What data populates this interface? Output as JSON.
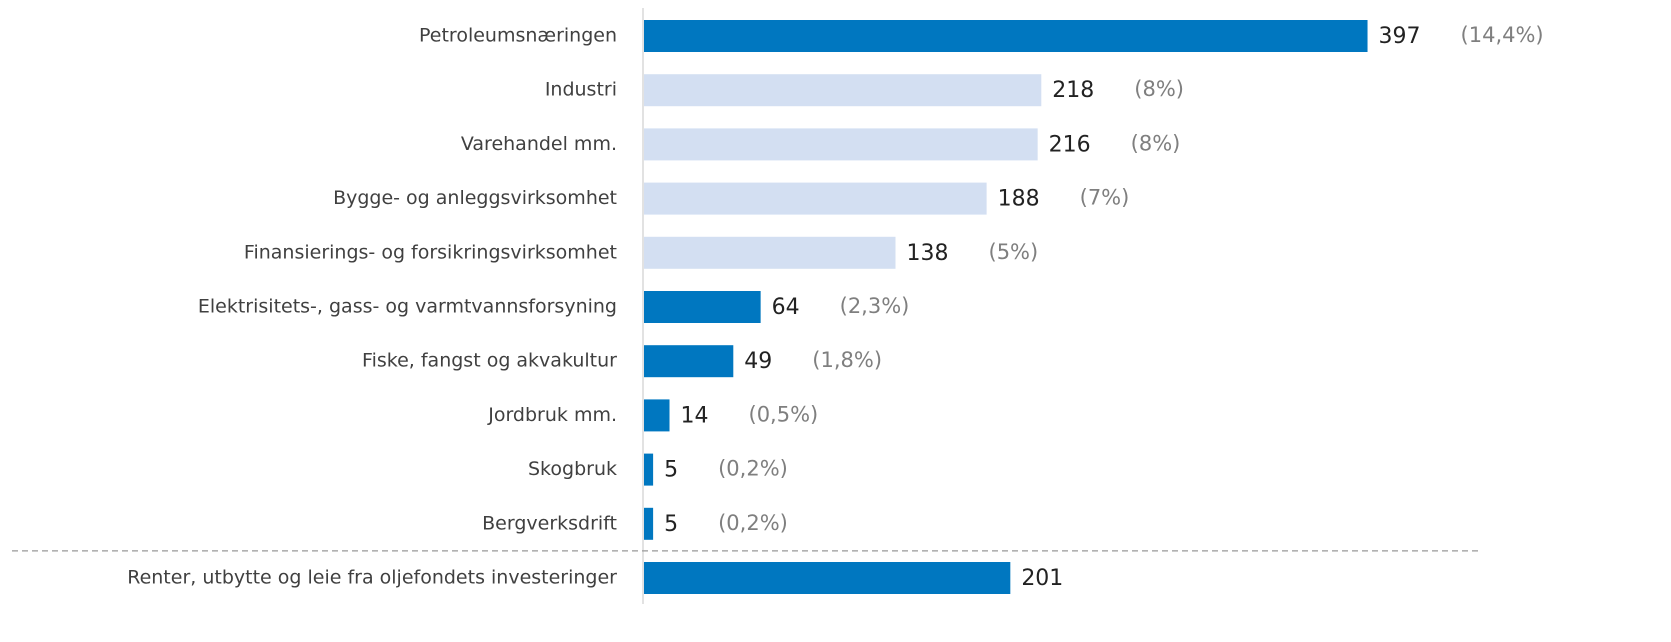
{
  "chart_data": {
    "type": "hbar",
    "categories": [
      "Petroleumsnæringen",
      "Industri",
      "Varehandel mm.",
      "Bygge- og anleggsvirksomhet",
      "Finansierings- og forsikringsvirksomhet",
      "Elektrisitets-, gass- og varmtvannsforsyning",
      "Fiske, fangst og akvakultur",
      "Jordbruk mm.",
      "Skogbruk",
      "Bergverksdrift",
      "Renter, utbytte og leie fra oljefondets investeringer"
    ],
    "values": [
      397,
      218,
      216,
      188,
      138,
      64,
      49,
      14,
      5,
      5,
      201
    ],
    "share_labels": [
      "(14,4%)",
      "(8%)",
      "(8%)",
      "(7%)",
      "(5%)",
      "(2,3%)",
      "(1,8%)",
      "(0,5%)",
      "(0,2%)",
      "(0,2%)",
      null
    ],
    "colors": [
      "#0077c0",
      "#d3dff2",
      "#d3dff2",
      "#d3dff2",
      "#d3dff2",
      "#0077c0",
      "#0077c0",
      "#0077c0",
      "#0077c0",
      "#0077c0",
      "#0077c0"
    ],
    "xlim": [
      0,
      400
    ]
  }
}
